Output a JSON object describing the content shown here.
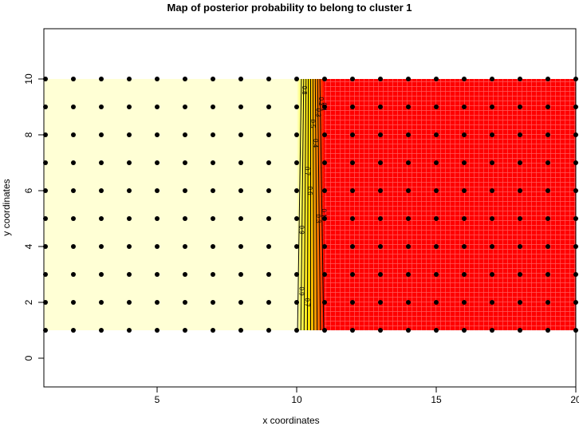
{
  "chart_data": {
    "type": "heatmap",
    "title": "Map of posterior probability to belong to cluster  1",
    "xlabel": "x coordinates",
    "ylabel": "y coordinates",
    "xlim": [
      1,
      20
    ],
    "ylim": [
      -1,
      11.8
    ],
    "xticks": [
      5,
      10,
      15,
      20
    ],
    "yticks": [
      0,
      2,
      4,
      6,
      8,
      10
    ],
    "grid": false,
    "points": {
      "x": [
        1,
        2,
        3,
        4,
        5,
        6,
        7,
        8,
        9,
        10,
        11,
        12,
        13,
        14,
        15,
        16,
        17,
        18,
        19,
        20
      ],
      "y": [
        1,
        2,
        3,
        4,
        5,
        6,
        7,
        8,
        9,
        10
      ]
    },
    "surface": {
      "x_range": [
        1,
        20
      ],
      "y_range": [
        1,
        10
      ],
      "transition_x": [
        10,
        11
      ],
      "high_color": "#FFFFD5",
      "low_color": "#FF0000",
      "high_side": "left"
    },
    "contour_levels": [
      0.1,
      0.2,
      0.3,
      0.4,
      0.5,
      0.6,
      0.7,
      0.8,
      0.9
    ],
    "contour_labels": [
      "0.1",
      "0.2",
      "0.3",
      "0.4",
      "0.5",
      "0.6",
      "0.7",
      "0.8",
      "0.9"
    ]
  }
}
